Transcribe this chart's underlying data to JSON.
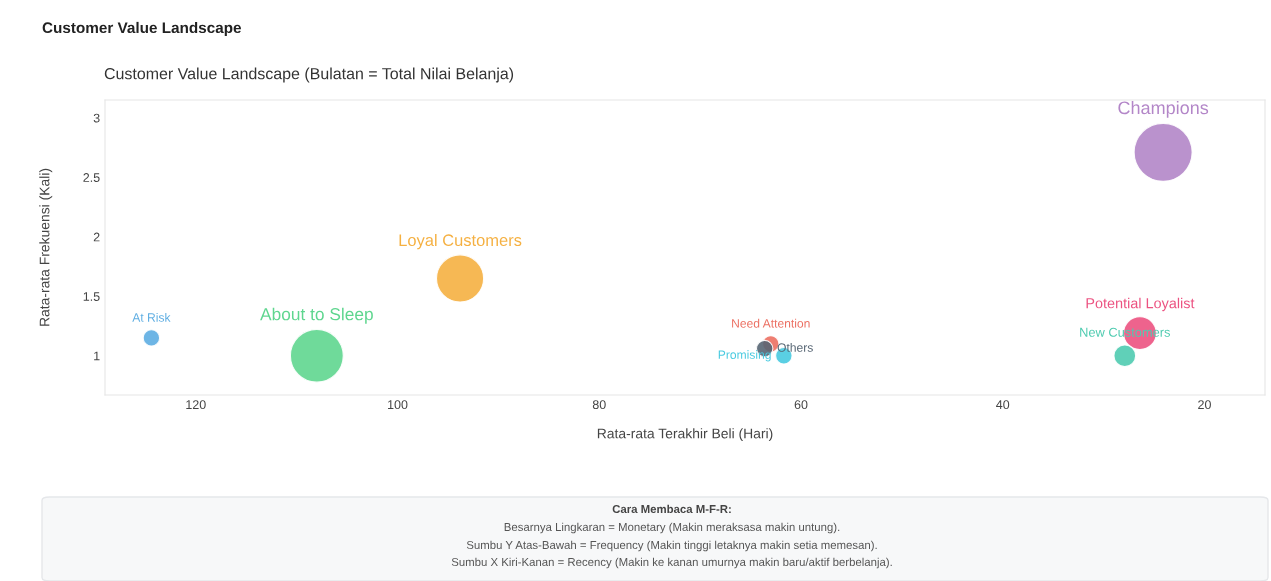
{
  "chart_data": {
    "type": "bubble",
    "subtitle": "Customer Value Landscape",
    "title": "Customer Value Landscape (Bulatan = Total Nilai Belanja)",
    "xlabel": "Rata-rata Terakhir Beli (Hari)",
    "ylabel": "Rata-rata Frekuensi (Kali)",
    "xlim": [
      129,
      14
    ],
    "xticks": [
      120,
      100,
      80,
      60,
      40,
      20
    ],
    "ylim": [
      0.67,
      3.15
    ],
    "yticks": [
      1,
      1.5,
      2,
      2.5,
      3
    ],
    "grid": false,
    "legend": false,
    "series": [
      {
        "name": "At Risk",
        "color": "#5dade2",
        "x": [
          124.4
        ],
        "values": [
          1.15
        ],
        "sizes": [
          0.08
        ]
      },
      {
        "name": "About to Sleep",
        "color": "#5fd68f",
        "x": [
          108.0
        ],
        "values": [
          1.0
        ],
        "sizes": [
          0.83
        ]
      },
      {
        "name": "Loyal Customers",
        "color": "#f5b041",
        "x": [
          93.8
        ],
        "values": [
          1.65
        ],
        "sizes": [
          0.66
        ]
      },
      {
        "name": "Need Attention",
        "color": "#ec7063",
        "x": [
          63.0
        ],
        "values": [
          1.1
        ],
        "sizes": [
          0.08
        ]
      },
      {
        "name": "Others",
        "color": "#566573",
        "x": [
          63.6
        ],
        "values": [
          1.06
        ],
        "sizes": [
          0.08
        ]
      },
      {
        "name": "Promising",
        "color": "#48cae0",
        "x": [
          61.7
        ],
        "values": [
          1.0
        ],
        "sizes": [
          0.08
        ]
      },
      {
        "name": "Champions",
        "color": "#b386c8",
        "x": [
          24.1
        ],
        "values": [
          2.71
        ],
        "sizes": [
          1
        ]
      },
      {
        "name": "Potential Loyalist",
        "color": "#ec5281",
        "x": [
          26.4
        ],
        "values": [
          1.19
        ],
        "sizes": [
          0.32
        ]
      },
      {
        "name": "New Customers",
        "color": "#4fcbb0",
        "x": [
          27.9
        ],
        "values": [
          1.0
        ],
        "sizes": [
          0.14
        ]
      }
    ],
    "annotations": [
      "Cara Membaca M-F-R:",
      "Besarnya Lingkaran = Monetary (Makin meraksasa makin untung).",
      "Sumbu Y Atas-Bawah = Frequency (Makin tinggi letaknya makin setia memesan).",
      "Sumbu X Kiri-Kanan = Recency (Makin ke kanan umurnya makin baru/aktif berbelanja)."
    ]
  }
}
